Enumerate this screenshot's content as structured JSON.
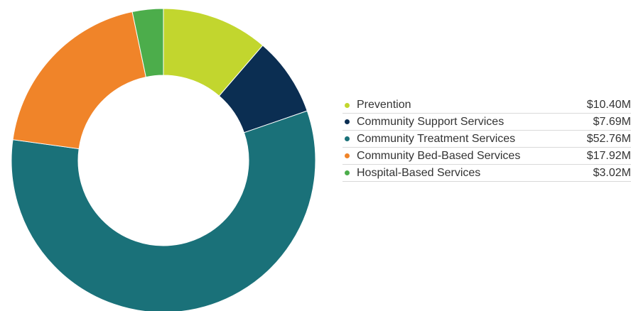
{
  "chart_data": {
    "type": "pie",
    "donut": true,
    "legend_position": "right",
    "categories": [
      "Prevention",
      "Community Support Services",
      "Community Treatment Services",
      "Community Bed-Based Services",
      "Hospital-Based Services"
    ],
    "values": [
      10.4,
      7.69,
      52.76,
      17.92,
      3.02
    ],
    "value_labels": [
      "$10.40M",
      "$7.69M",
      "$52.76M",
      "$17.92M",
      "$3.02M"
    ],
    "colors": [
      "#c2d62e",
      "#0b2e52",
      "#1a7179",
      "#f08429",
      "#4cad4b"
    ],
    "title": ""
  }
}
